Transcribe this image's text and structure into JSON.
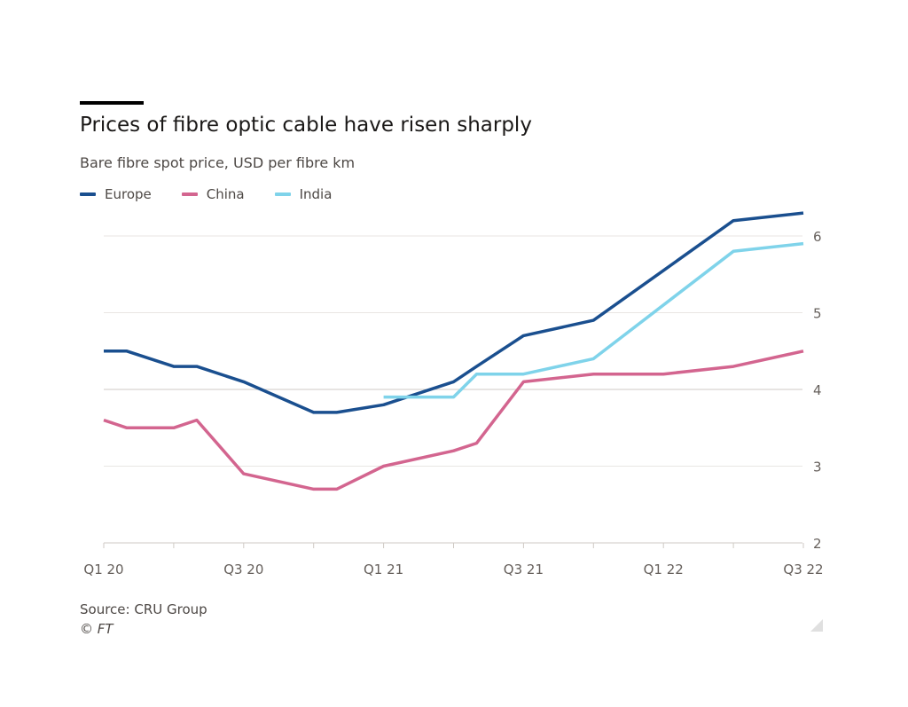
{
  "chart_data": {
    "type": "line",
    "title": "Prices of fibre optic cable have risen sharply",
    "subtitle": "Bare fibre spot price, USD per fibre km",
    "x": [
      "Q1 20",
      "Q2 20",
      "Q3 20",
      "Q4 20",
      "Q1 21",
      "Q2 21",
      "Q3 21",
      "Q4 21",
      "Q1 22",
      "Q2 22",
      "Q3 22"
    ],
    "x_ticks": [
      "Q1 20",
      "Q3 20",
      "Q1 21",
      "Q3 21",
      "Q1 22",
      "Q3 22"
    ],
    "y_ticks": [
      "2",
      "3",
      "4",
      "5",
      "6"
    ],
    "ylim": [
      2,
      6.3
    ],
    "grid": true,
    "legend_position": "top-left",
    "series": [
      {
        "name": "Europe",
        "color": "#1a4f8f",
        "points": [
          [
            "Q1 20",
            4.5
          ],
          [
            "Q1 20+",
            4.5
          ],
          [
            "Q2 20",
            4.3
          ],
          [
            "Q2 20+",
            4.3
          ],
          [
            "Q3 20",
            4.1
          ],
          [
            "Q4 20",
            3.7
          ],
          [
            "Q4 20+",
            3.7
          ],
          [
            "Q1 21",
            3.8
          ],
          [
            "Q2 21",
            4.1
          ],
          [
            "Q2 21+",
            4.3
          ],
          [
            "Q3 21",
            4.7
          ],
          [
            "Q4 21",
            4.9
          ],
          [
            "Q1 22",
            5.55
          ],
          [
            "Q2 22",
            6.2
          ],
          [
            "Q3 22",
            6.3
          ]
        ]
      },
      {
        "name": "China",
        "color": "#d3658f",
        "points": [
          [
            "Q1 20",
            3.6
          ],
          [
            "Q1 20+",
            3.5
          ],
          [
            "Q2 20",
            3.5
          ],
          [
            "Q2 20+",
            3.6
          ],
          [
            "Q3 20",
            2.9
          ],
          [
            "Q4 20",
            2.7
          ],
          [
            "Q4 20+",
            2.7
          ],
          [
            "Q1 21",
            3.0
          ],
          [
            "Q2 21",
            3.2
          ],
          [
            "Q2 21+",
            3.3
          ],
          [
            "Q3 21",
            4.1
          ],
          [
            "Q4 21",
            4.2
          ],
          [
            "Q1 22",
            4.2
          ],
          [
            "Q2 22",
            4.3
          ],
          [
            "Q3 22",
            4.5
          ]
        ]
      },
      {
        "name": "India",
        "color": "#7fd3ea",
        "points": [
          [
            "Q1 21",
            3.9
          ],
          [
            "Q2 21",
            3.9
          ],
          [
            "Q2 21+",
            4.2
          ],
          [
            "Q3 21",
            4.2
          ],
          [
            "Q4 21",
            4.4
          ],
          [
            "Q2 22",
            5.8
          ],
          [
            "Q3 22",
            5.9
          ]
        ]
      }
    ],
    "source": "Source: CRU Group",
    "credit": "© FT"
  }
}
